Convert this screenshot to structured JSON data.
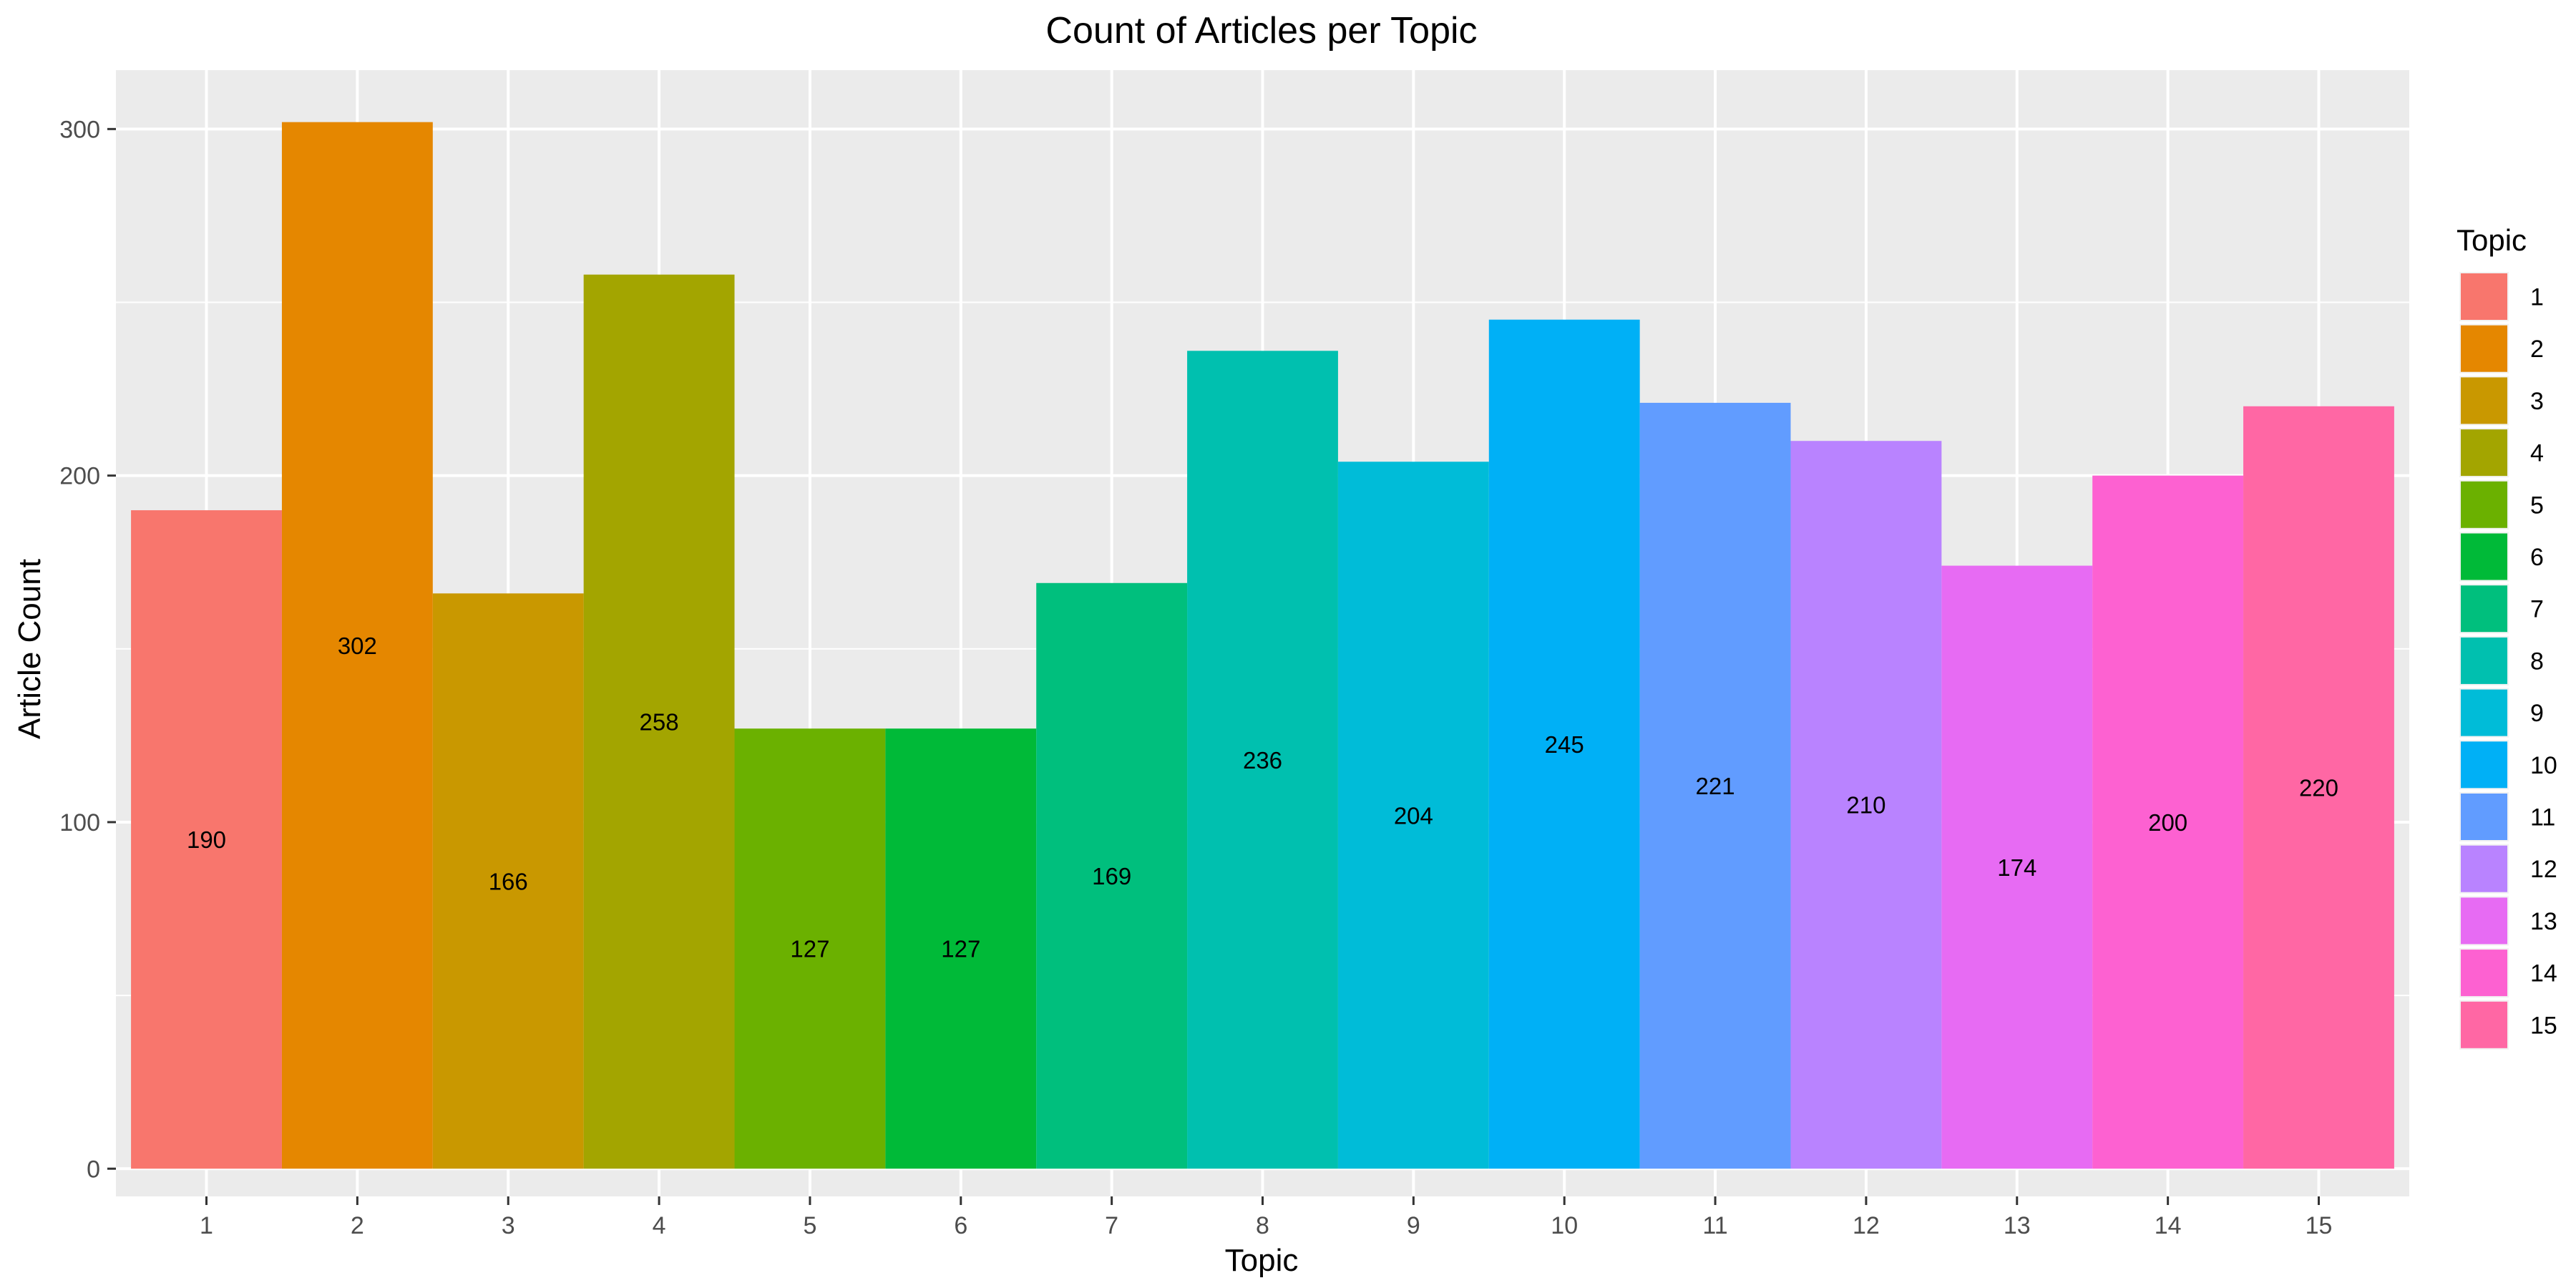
{
  "chart_data": {
    "type": "bar",
    "title": "Count of Articles per Topic",
    "xlabel": "Topic",
    "ylabel": "Article Count",
    "categories": [
      "1",
      "2",
      "3",
      "4",
      "5",
      "6",
      "7",
      "8",
      "9",
      "10",
      "11",
      "12",
      "13",
      "14",
      "15"
    ],
    "values": [
      190,
      302,
      166,
      258,
      127,
      127,
      169,
      236,
      204,
      245,
      221,
      210,
      174,
      200,
      220
    ],
    "data_labels": [
      "190",
      "302",
      "166",
      "258",
      "127",
      "127",
      "169",
      "236",
      "204",
      "245",
      "221",
      "210",
      "174",
      "200",
      "220"
    ],
    "colors": [
      "#F8766D",
      "#E58700",
      "#C99800",
      "#A3A500",
      "#6BB100",
      "#00BA38",
      "#00BF7D",
      "#00C0AF",
      "#00BCD8",
      "#00B0F6",
      "#619CFF",
      "#B983FF",
      "#E76BF3",
      "#FD61D1",
      "#FF67A4"
    ],
    "ylim": [
      -8,
      317
    ],
    "yticks": [
      0,
      100,
      200,
      300
    ],
    "ytick_labels": [
      "0",
      "100",
      "200",
      "300"
    ],
    "grid": true,
    "panel_background": "#EBEBEB",
    "legend": {
      "title": "Topic",
      "position": "right",
      "labels": [
        "1",
        "2",
        "3",
        "4",
        "5",
        "6",
        "7",
        "8",
        "9",
        "10",
        "11",
        "12",
        "13",
        "14",
        "15"
      ]
    }
  }
}
